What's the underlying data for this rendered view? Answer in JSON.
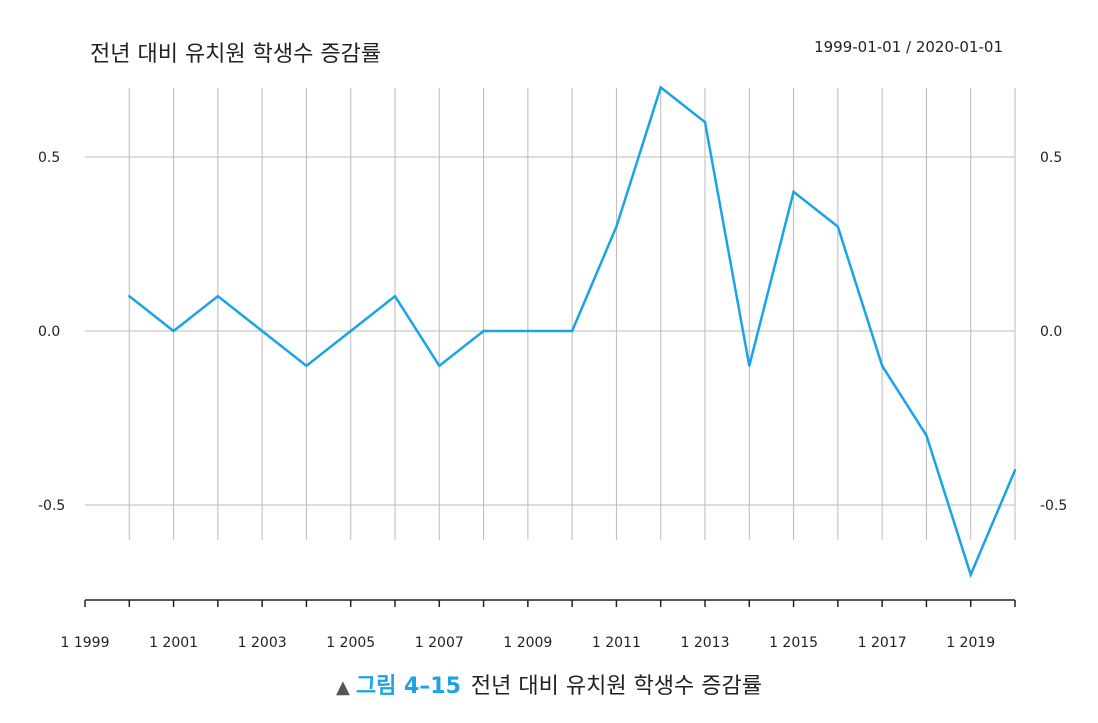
{
  "title": "전년 대비 유치원 학생수 증감률",
  "date_range": "1999-01-01 / 2020-01-01",
  "caption": {
    "marker": "▲",
    "figure_number": "그림 4–15",
    "text": "전년 대비 유치원 학생수 증감률"
  },
  "colors": {
    "line": "#1aa3e6",
    "grid": "#bbbbbb",
    "axis": "#222222",
    "caption_accent": "#1aa3e6"
  },
  "chart_data": {
    "type": "line",
    "title": "전년 대비 유치원 학생수 증감률",
    "xlabel": "",
    "ylabel": "",
    "x": [
      2000,
      2001,
      2002,
      2003,
      2004,
      2005,
      2006,
      2007,
      2008,
      2009,
      2010,
      2011,
      2012,
      2013,
      2014,
      2015,
      2016,
      2017,
      2018,
      2019,
      2020
    ],
    "series": [
      {
        "values": [
          0.1,
          0.0,
          0.1,
          0.0,
          -0.1,
          0.0,
          0.1,
          -0.1,
          0.0,
          0.0,
          0.0,
          0.3,
          0.7,
          0.6,
          -0.1,
          0.4,
          0.3,
          -0.1,
          -0.3,
          -0.7,
          -0.4
        ]
      }
    ],
    "xlim": [
      1999,
      2020
    ],
    "ylim": [
      -0.7,
      0.7
    ],
    "yticks": [
      0.5,
      0.0,
      -0.5
    ],
    "ytick_labels": [
      "0.5",
      "0.0",
      "-0.5"
    ],
    "xticks": [
      1999,
      2001,
      2003,
      2005,
      2007,
      2009,
      2011,
      2013,
      2015,
      2017,
      2019
    ],
    "xtick_labels": [
      "1 1999",
      "1 2001",
      "1 2003",
      "1 2005",
      "1 2007",
      "1 2009",
      "1 2011",
      "1 2013",
      "1 2015",
      "1 2017",
      "1 2019"
    ],
    "grid": true,
    "y_axis_labels_both_sides": true
  }
}
